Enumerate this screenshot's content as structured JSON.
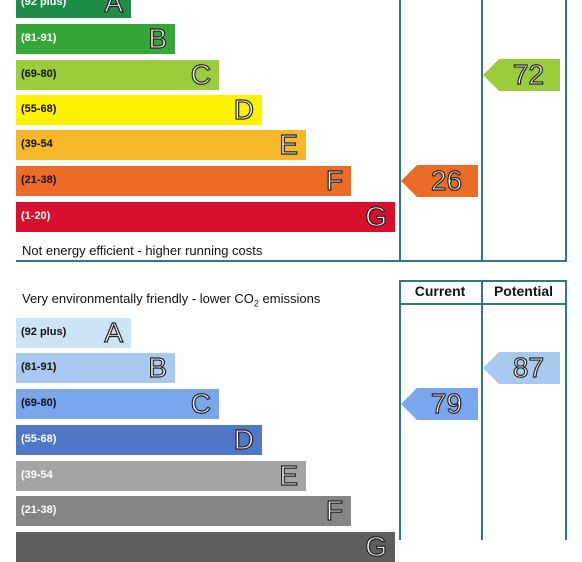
{
  "chart_data": [
    {
      "type": "bar",
      "name": "energy-efficiency-rating",
      "bands": [
        {
          "range": "(92 plus)",
          "letter": "A",
          "color": "#1e8c46",
          "range_color": "#ffffff"
        },
        {
          "range": "(81-91)",
          "letter": "B",
          "color": "#35a637",
          "range_color": "#ffffff"
        },
        {
          "range": "(69-80)",
          "letter": "C",
          "color": "#9ccb3b",
          "range_color": "#111111"
        },
        {
          "range": "(55-68)",
          "letter": "D",
          "color": "#fff200",
          "range_color": "#111111"
        },
        {
          "range": "(39-54",
          "letter": "E",
          "color": "#f5b82b",
          "range_color": "#111111"
        },
        {
          "range": "(21-38)",
          "letter": "F",
          "color": "#ec6c27",
          "range_color": "#111111"
        },
        {
          "range": "(1-20)",
          "letter": "G",
          "color": "#d8102e",
          "range_color": "#ffffff"
        }
      ],
      "bottom_caption": "Not energy efficient - higher running costs",
      "current": {
        "value": 26,
        "band": "F",
        "color": "#ec6c27"
      },
      "potential": {
        "value": 72,
        "band": "C",
        "color": "#9ccb3b"
      }
    },
    {
      "type": "bar",
      "name": "environmental-impact-rating",
      "top_caption": "Very environmentally friendly - lower CO",
      "top_caption_sub": "2",
      "top_caption_tail": " emissions",
      "column_headers": {
        "current": "Current",
        "potential": "Potential"
      },
      "bands": [
        {
          "range": "(92 plus)",
          "letter": "A",
          "color": "#cde3f6",
          "range_color": "#111111"
        },
        {
          "range": "(81-91)",
          "letter": "B",
          "color": "#a8caf0",
          "range_color": "#111111"
        },
        {
          "range": "(69-80)",
          "letter": "C",
          "color": "#7aa6ee",
          "range_color": "#111111"
        },
        {
          "range": "(55-68)",
          "letter": "D",
          "color": "#5078c6",
          "range_color": "#ffffff"
        },
        {
          "range": "(39-54",
          "letter": "E",
          "color": "#a4a4a4",
          "range_color": "#ffffff"
        },
        {
          "range": "(21-38)",
          "letter": "F",
          "color": "#858585",
          "range_color": "#ffffff"
        },
        {
          "range": "",
          "letter": "G",
          "color": "#5e5e5e",
          "range_color": "#ffffff"
        }
      ],
      "current": {
        "value": 79,
        "band": "C",
        "color": "#7aa6ee"
      },
      "potential": {
        "value": 87,
        "band": "B",
        "color": "#a8caf0"
      }
    }
  ]
}
